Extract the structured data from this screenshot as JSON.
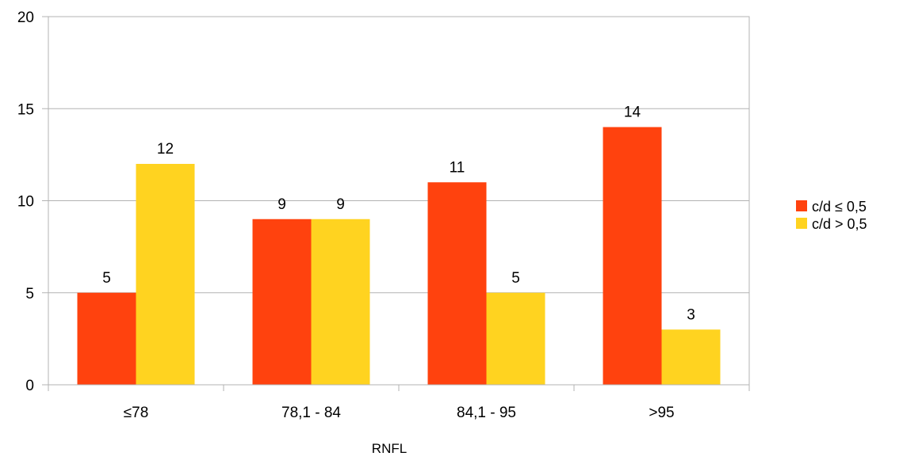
{
  "chart_data": {
    "type": "bar",
    "title": "",
    "xlabel": "RNFL",
    "ylabel": "",
    "categories": [
      "≤78",
      "78,1 - 84",
      "84,1 - 95",
      ">95"
    ],
    "series": [
      {
        "name": "c/d ≤  0,5",
        "values": [
          5,
          9,
          11,
          14
        ],
        "color": "#ff420e"
      },
      {
        "name": "c/d > 0,5",
        "values": [
          12,
          9,
          5,
          3
        ],
        "color": "#ffd320"
      }
    ],
    "ylim": [
      0,
      20
    ],
    "yticks": [
      0,
      5,
      10,
      15,
      20
    ],
    "grid": true,
    "legend": "right"
  }
}
